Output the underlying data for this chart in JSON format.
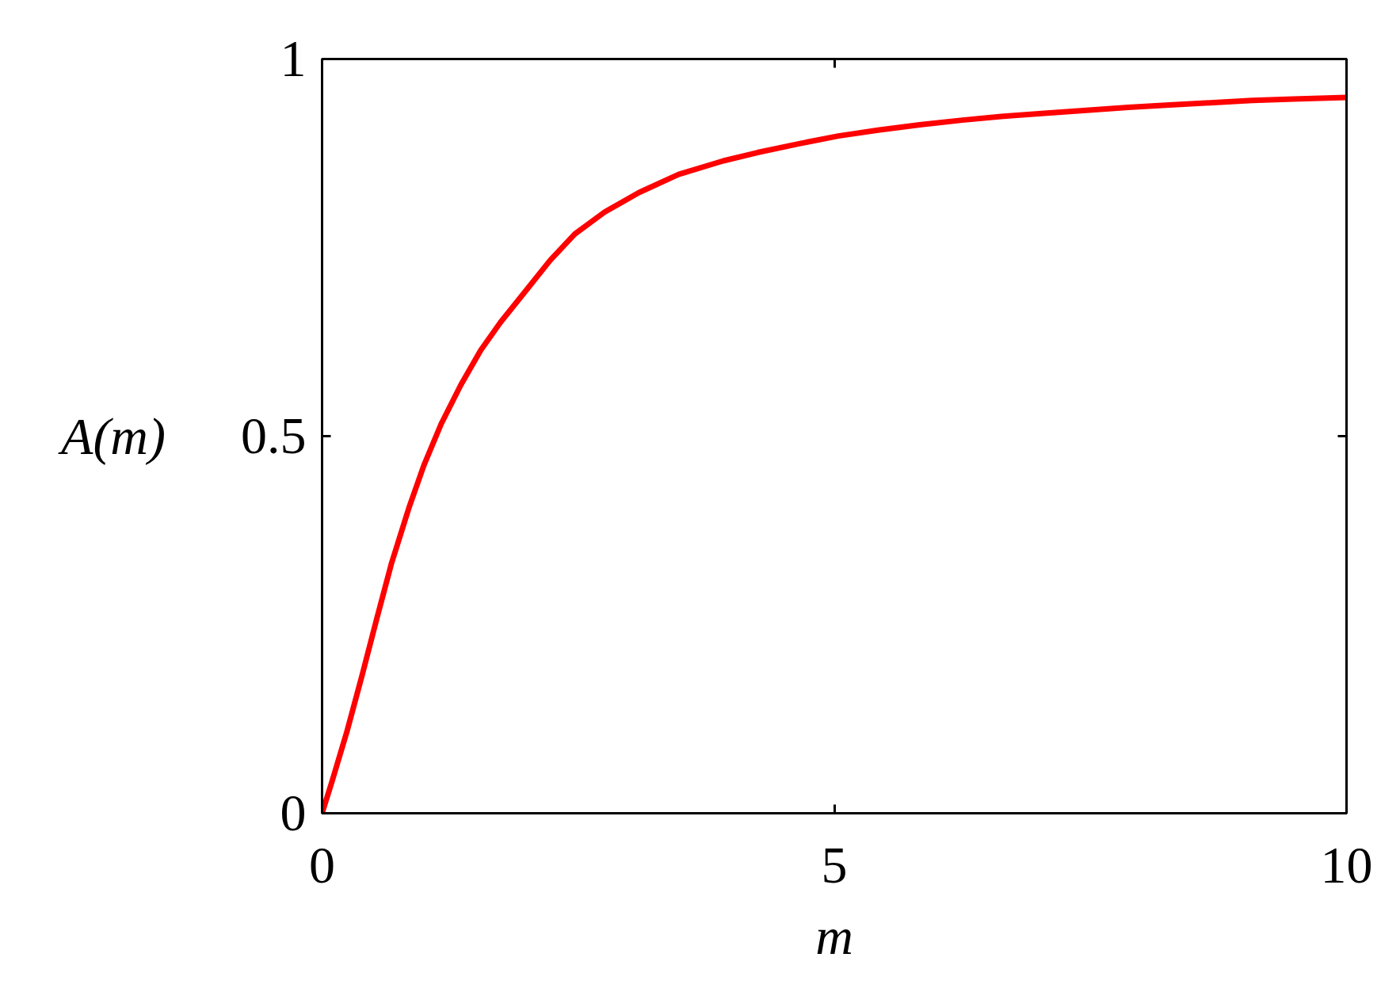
{
  "chart_data": {
    "type": "line",
    "xlabel": "m",
    "ylabel": "A(m)",
    "x": [
      0,
      0.099,
      0.244,
      0.387,
      0.534,
      0.679,
      0.848,
      0.993,
      1.162,
      1.355,
      1.549,
      1.742,
      1.984,
      2.226,
      2.467,
      2.757,
      3.094,
      3.48,
      3.917,
      4.25,
      4.63,
      5.04,
      5.44,
      5.85,
      6.25,
      6.65,
      7.05,
      7.46,
      7.87,
      8.27,
      8.67,
      9.08,
      9.48,
      10
    ],
    "series": [
      {
        "color": "#ff0000",
        "values": [
          0,
          0.043,
          0.109,
          0.181,
          0.258,
          0.332,
          0.405,
          0.461,
          0.516,
          0.568,
          0.614,
          0.651,
          0.692,
          0.733,
          0.768,
          0.797,
          0.823,
          0.847,
          0.865,
          0.876,
          0.887,
          0.898,
          0.906,
          0.913,
          0.919,
          0.924,
          0.928,
          0.932,
          0.936,
          0.939,
          0.942,
          0.945,
          0.947,
          0.949
        ]
      }
    ],
    "xlim": [
      0,
      10
    ],
    "ylim": [
      0,
      1
    ],
    "xticks": [
      0,
      5,
      10
    ],
    "yticks": [
      0,
      0.5,
      1
    ],
    "line_style": "solid"
  }
}
